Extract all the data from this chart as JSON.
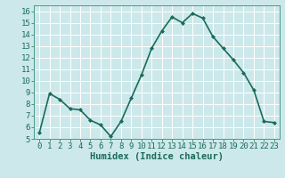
{
  "x": [
    0,
    1,
    2,
    3,
    4,
    5,
    6,
    7,
    8,
    9,
    10,
    11,
    12,
    13,
    14,
    15,
    16,
    17,
    18,
    19,
    20,
    21,
    22,
    23
  ],
  "y": [
    5.5,
    8.9,
    8.4,
    7.6,
    7.5,
    6.6,
    6.2,
    5.2,
    6.5,
    8.5,
    10.5,
    12.8,
    14.3,
    15.5,
    15.0,
    15.8,
    15.4,
    13.8,
    12.8,
    11.8,
    10.7,
    9.2,
    6.5,
    6.4
  ],
  "line_color": "#1a6b5a",
  "marker": "D",
  "marker_size": 2.0,
  "bg_color": "#cce8ea",
  "grid_color": "#ffffff",
  "xlabel": "Humidex (Indice chaleur)",
  "xlim": [
    -0.5,
    23.5
  ],
  "ylim": [
    5,
    16.5
  ],
  "yticks": [
    5,
    6,
    7,
    8,
    9,
    10,
    11,
    12,
    13,
    14,
    15,
    16
  ],
  "xticks": [
    0,
    1,
    2,
    3,
    4,
    5,
    6,
    7,
    8,
    9,
    10,
    11,
    12,
    13,
    14,
    15,
    16,
    17,
    18,
    19,
    20,
    21,
    22,
    23
  ],
  "xlabel_fontsize": 7.5,
  "tick_fontsize": 6.5,
  "line_width": 1.2,
  "spine_color": "#4a9a8a"
}
